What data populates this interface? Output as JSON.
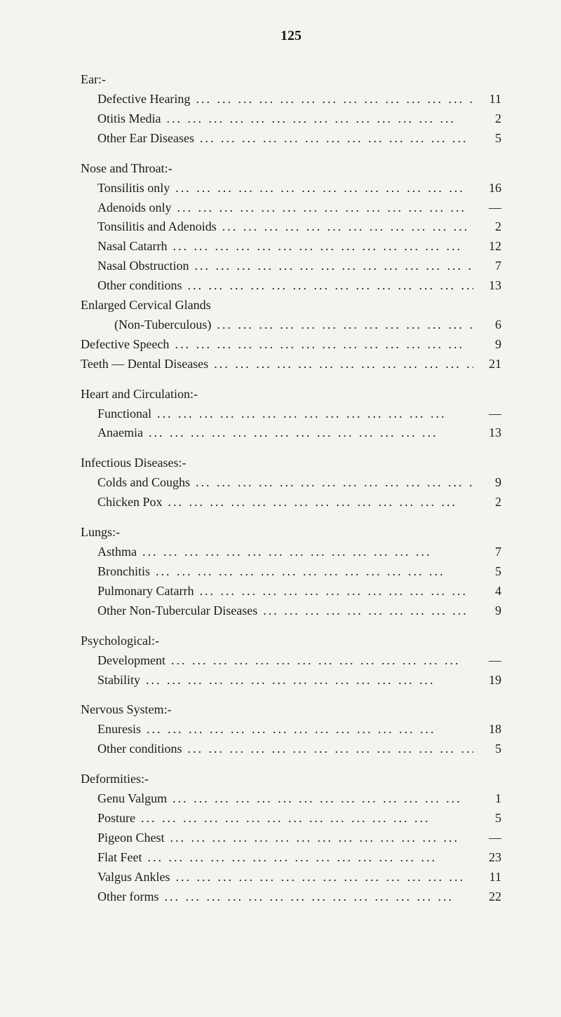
{
  "page_number": "125",
  "dots_text": "...   ...   ...   ...   ...   ...   ...   ...   ...   ...   ...   ...   ...   ...",
  "colors": {
    "background": "#f5f3ee",
    "text": "#1a1a1a"
  },
  "typography": {
    "body_fontsize": 18,
    "page_num_fontsize": 20,
    "font_family": "Georgia, Times New Roman, serif"
  },
  "sections": [
    {
      "header": "Ear:-",
      "entries": [
        {
          "label": "Defective Hearing",
          "value": "11"
        },
        {
          "label": "Otitis Media",
          "value": "2"
        },
        {
          "label": "Other Ear Diseases",
          "value": "5"
        }
      ]
    },
    {
      "header": "Nose and Throat:-",
      "entries": [
        {
          "label": "Tonsilitis only",
          "value": "16"
        },
        {
          "label": "Adenoids only",
          "value": "—"
        },
        {
          "label": "Tonsilitis and Adenoids",
          "value": "2"
        },
        {
          "label": "Nasal Catarrh",
          "value": "12"
        },
        {
          "label": "Nasal Obstruction",
          "value": "7"
        },
        {
          "label": "Other conditions",
          "value": "13"
        }
      ],
      "after_entries": [
        {
          "label": "Enlarged Cervical Glands",
          "noindent": true,
          "novalue": true
        },
        {
          "label": "(Non-Tuberculous)",
          "value": "6",
          "extra_indent": true
        },
        {
          "label": "Defective Speech",
          "value": "9",
          "noindent": true
        },
        {
          "label": "Teeth — Dental Diseases",
          "value": "21",
          "noindent": true
        }
      ]
    },
    {
      "header": "Heart and Circulation:-",
      "entries": [
        {
          "label": "Functional",
          "value": "—"
        },
        {
          "label": "Anaemia",
          "value": "13"
        }
      ]
    },
    {
      "header": "Infectious Diseases:-",
      "entries": [
        {
          "label": "Colds and Coughs",
          "value": "9"
        },
        {
          "label": "Chicken Pox",
          "value": "2"
        }
      ]
    },
    {
      "header": "Lungs:-",
      "entries": [
        {
          "label": "Asthma",
          "value": "7"
        },
        {
          "label": "Bronchitis",
          "value": "5"
        },
        {
          "label": "Pulmonary Catarrh",
          "value": "4"
        },
        {
          "label": "Other Non-Tubercular Diseases",
          "value": "9"
        }
      ]
    },
    {
      "header": "Psychological:-",
      "entries": [
        {
          "label": "Development",
          "value": "—"
        },
        {
          "label": "Stability",
          "value": "19"
        }
      ]
    },
    {
      "header": "Nervous System:-",
      "entries": [
        {
          "label": "Enuresis",
          "value": "18"
        },
        {
          "label": "Other conditions",
          "value": "5"
        }
      ]
    },
    {
      "header": "Deformities:-",
      "entries": [
        {
          "label": "Genu Valgum",
          "value": "1"
        },
        {
          "label": "Posture",
          "value": "5"
        },
        {
          "label": "Pigeon Chest",
          "value": "—"
        },
        {
          "label": "Flat Feet",
          "value": "23"
        },
        {
          "label": "Valgus Ankles",
          "value": "11"
        },
        {
          "label": "Other forms",
          "value": "22"
        }
      ]
    }
  ]
}
